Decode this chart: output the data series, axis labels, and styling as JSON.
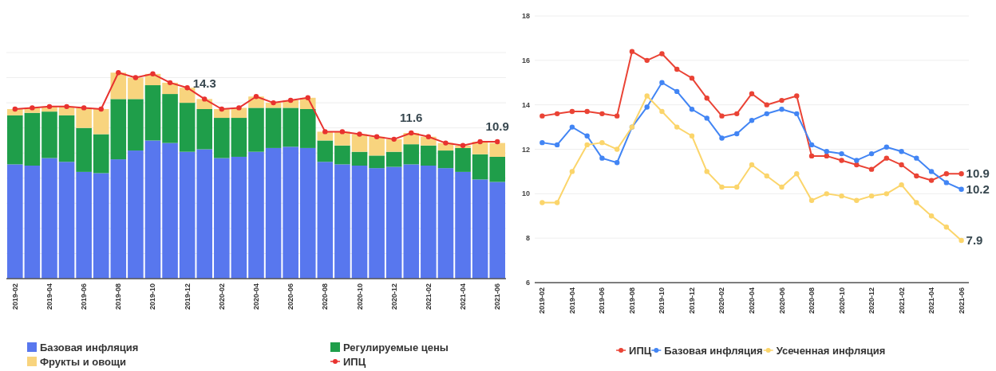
{
  "chart_data": [
    {
      "type": "bar",
      "stacked": true,
      "categories": [
        "2019-02",
        null,
        "2019-04",
        null,
        "2019-06",
        null,
        "2019-08",
        null,
        "2019-10",
        null,
        "2019-12",
        null,
        "2020-02",
        null,
        "2020-04",
        null,
        "2020-06",
        null,
        "2020-08",
        null,
        "2020-10",
        null,
        "2020-12",
        null,
        "2021-02",
        null,
        "2021-04",
        null,
        "2021-06"
      ],
      "ylim": [
        0,
        18
      ],
      "yticks": [
        {
          "value": 0,
          "label": null
        },
        {
          "value": 2,
          "label": null
        },
        {
          "value": 4,
          "label": null
        },
        {
          "value": 6,
          "label": null
        },
        {
          "value": 8,
          "label": null
        },
        {
          "value": 10,
          "label": null
        },
        {
          "value": 12,
          "label": null
        },
        {
          "value": 14,
          "label": null
        },
        {
          "value": 16,
          "label": null
        },
        {
          "value": 18,
          "label": null
        }
      ],
      "tick_labels": "x",
      "grid": "y",
      "legend": "bottom",
      "marker": "circle",
      "series": [
        {
          "name": "Базовая инфляция",
          "color": "#5877ee",
          "values": [
            9.1,
            9.0,
            9.6,
            9.3,
            8.5,
            8.4,
            9.5,
            10.2,
            11.0,
            10.8,
            10.1,
            10.3,
            9.6,
            9.7,
            10.1,
            10.4,
            10.5,
            10.4,
            9.3,
            9.1,
            9.0,
            8.8,
            8.9,
            9.1,
            9.0,
            8.8,
            8.5,
            7.9,
            7.7
          ]
        },
        {
          "name": "Регулируемые цены",
          "color": "#1f9e4a",
          "values": [
            3.9,
            4.2,
            3.7,
            3.7,
            3.5,
            3.1,
            4.8,
            4.1,
            4.4,
            3.9,
            3.9,
            3.2,
            3.2,
            3.1,
            3.5,
            3.2,
            3.1,
            3.1,
            1.7,
            1.5,
            1.1,
            1.0,
            1.2,
            1.6,
            1.6,
            1.4,
            1.9,
            2.0,
            2.0
          ]
        },
        {
          "name": "Фрукты и овощи",
          "color": "#f8d47e",
          "values": [
            0.5,
            0.4,
            0.4,
            0.7,
            1.6,
            2.0,
            2.1,
            1.7,
            0.9,
            0.9,
            1.2,
            0.8,
            0.7,
            0.8,
            0.9,
            0.4,
            0.6,
            0.9,
            0.7,
            1.1,
            1.4,
            1.5,
            1.0,
            0.9,
            0.7,
            0.6,
            0.2,
            1.0,
            1.1
          ]
        },
        {
          "name": "ИПЦ",
          "type": "line",
          "color": "#e8322f",
          "values": [
            13.5,
            13.6,
            13.7,
            13.7,
            13.6,
            13.5,
            16.4,
            16.0,
            16.3,
            15.6,
            15.2,
            14.3,
            13.5,
            13.6,
            14.5,
            14.0,
            14.2,
            14.4,
            11.7,
            11.7,
            11.5,
            11.3,
            11.1,
            11.6,
            11.3,
            10.8,
            10.6,
            10.9,
            10.9
          ],
          "value_labels": [
            null,
            null,
            null,
            null,
            null,
            null,
            null,
            null,
            null,
            null,
            null,
            "14.3",
            null,
            null,
            null,
            null,
            null,
            null,
            null,
            null,
            null,
            null,
            null,
            "11.6",
            null,
            null,
            null,
            null,
            "10.9"
          ]
        }
      ]
    },
    {
      "type": "line",
      "categories": [
        "2019-02",
        null,
        "2019-04",
        null,
        "2019-06",
        null,
        "2019-08",
        null,
        "2019-10",
        null,
        "2019-12",
        null,
        "2020-02",
        null,
        "2020-04",
        null,
        "2020-06",
        null,
        "2020-08",
        null,
        "2020-10",
        null,
        "2020-12",
        null,
        "2021-02",
        null,
        "2021-04",
        null,
        "2021-06"
      ],
      "ylim": [
        6,
        18
      ],
      "yticks": [
        6,
        8,
        10,
        12,
        14,
        16,
        18
      ],
      "grid": "y",
      "legend": "bottom",
      "marker": "circle",
      "series": [
        {
          "name": "ИПЦ",
          "color": "#ea4335",
          "values": [
            13.5,
            13.6,
            13.7,
            13.7,
            13.6,
            13.5,
            16.4,
            16.0,
            16.3,
            15.6,
            15.2,
            14.3,
            13.5,
            13.6,
            14.5,
            14.0,
            14.2,
            14.4,
            11.7,
            11.7,
            11.5,
            11.3,
            11.1,
            11.6,
            11.3,
            10.8,
            10.6,
            10.9,
            10.9
          ],
          "value_labels": [
            null,
            null,
            null,
            null,
            null,
            null,
            null,
            null,
            null,
            null,
            null,
            null,
            null,
            null,
            null,
            null,
            null,
            null,
            null,
            null,
            null,
            null,
            null,
            null,
            null,
            null,
            null,
            null,
            "10.9"
          ]
        },
        {
          "name": "Базовая инфляция",
          "color": "#4285f4",
          "values": [
            12.3,
            12.2,
            13.0,
            12.6,
            11.6,
            11.4,
            13.0,
            13.9,
            15.0,
            14.6,
            13.8,
            13.4,
            12.5,
            12.7,
            13.3,
            13.6,
            13.8,
            13.6,
            12.2,
            11.9,
            11.8,
            11.5,
            11.8,
            12.1,
            11.9,
            11.6,
            11.0,
            10.5,
            10.2
          ],
          "value_labels": [
            null,
            null,
            null,
            null,
            null,
            null,
            null,
            null,
            null,
            null,
            null,
            null,
            null,
            null,
            null,
            null,
            null,
            null,
            null,
            null,
            null,
            null,
            null,
            null,
            null,
            null,
            null,
            null,
            "10.2"
          ]
        },
        {
          "name": "Усеченная инфляция",
          "color": "#fbd56b",
          "values": [
            9.6,
            9.6,
            11.0,
            12.2,
            12.3,
            12.0,
            13.0,
            14.4,
            13.7,
            13.0,
            12.6,
            11.0,
            10.3,
            10.3,
            11.3,
            10.8,
            10.3,
            10.9,
            9.7,
            10.0,
            9.9,
            9.7,
            9.9,
            10.0,
            10.4,
            9.6,
            9.0,
            8.5,
            7.9
          ],
          "value_labels": [
            null,
            null,
            null,
            null,
            null,
            null,
            null,
            null,
            null,
            null,
            null,
            null,
            null,
            null,
            null,
            null,
            null,
            null,
            null,
            null,
            null,
            null,
            null,
            null,
            null,
            null,
            null,
            null,
            "7.9"
          ]
        }
      ]
    }
  ]
}
